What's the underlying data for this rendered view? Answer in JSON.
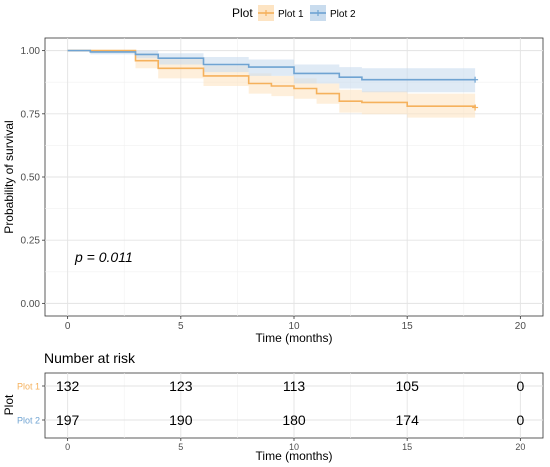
{
  "chart_data": {
    "type": "line",
    "subtype": "kaplan-meier",
    "legend": {
      "title": "Plot",
      "placement": "top",
      "entries": [
        {
          "name": "Plot 1",
          "color": "#f5b15c"
        },
        {
          "name": "Plot 2",
          "color": "#6fa3d2"
        }
      ]
    },
    "xlabel": "Time (months)",
    "ylabel": "Probability of survival",
    "xlim": [
      -1,
      21
    ],
    "ylim": [
      -0.05,
      1.05
    ],
    "xticks": [
      0,
      5,
      10,
      15,
      20
    ],
    "yticks": [
      0.0,
      0.25,
      0.5,
      0.75,
      1.0
    ],
    "ytick_labels": [
      "0.00",
      "0.25",
      "0.50",
      "0.75",
      "1.00"
    ],
    "grid": true,
    "annotation": "p = 0.011",
    "series": [
      {
        "name": "Plot 1",
        "color": "#f5b15c",
        "fill": "#fde4c3",
        "x": [
          0,
          3,
          4,
          6,
          8,
          9,
          10,
          11,
          12,
          13,
          15,
          18
        ],
        "y": [
          1.0,
          0.96,
          0.93,
          0.9,
          0.87,
          0.86,
          0.85,
          0.83,
          0.8,
          0.795,
          0.78,
          0.775
        ],
        "lower": [
          1.0,
          0.93,
          0.89,
          0.86,
          0.83,
          0.82,
          0.81,
          0.79,
          0.755,
          0.748,
          0.735,
          0.705
        ],
        "upper": [
          1.0,
          0.99,
          0.97,
          0.94,
          0.91,
          0.9,
          0.89,
          0.87,
          0.845,
          0.84,
          0.83,
          0.83
        ],
        "censor": [
          [
            18,
            0.775
          ]
        ]
      },
      {
        "name": "Plot 2",
        "color": "#6fa3d2",
        "fill": "#c9dcee",
        "x": [
          0,
          1,
          3,
          4,
          6,
          8,
          10,
          12,
          13,
          18
        ],
        "y": [
          1.0,
          0.995,
          0.985,
          0.97,
          0.945,
          0.935,
          0.91,
          0.895,
          0.885,
          0.885
        ],
        "lower": [
          1.0,
          0.985,
          0.97,
          0.945,
          0.915,
          0.9,
          0.87,
          0.85,
          0.835,
          0.835
        ],
        "upper": [
          1.0,
          1.0,
          1.0,
          0.99,
          0.975,
          0.965,
          0.945,
          0.935,
          0.93,
          0.93
        ],
        "censor": [
          [
            18,
            0.885
          ]
        ]
      }
    ],
    "risk_table": {
      "title": "Number at risk",
      "ylabel": "Plot",
      "xlabel": "Time (months)",
      "times": [
        0,
        5,
        10,
        15,
        20
      ],
      "rows": [
        {
          "name": "Plot 1",
          "color": "#f5b15c",
          "counts": [
            "132",
            "123",
            "113",
            "105",
            "0"
          ]
        },
        {
          "name": "Plot 2",
          "color": "#6fa3d2",
          "counts": [
            "197",
            "190",
            "180",
            "174",
            "0"
          ]
        }
      ]
    }
  }
}
